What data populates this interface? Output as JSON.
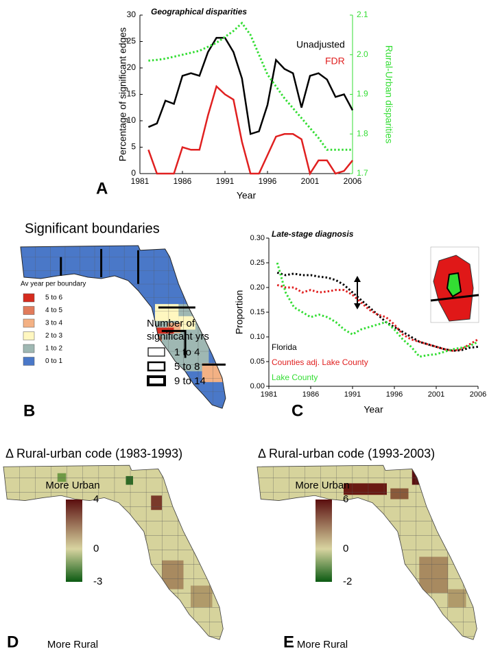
{
  "chart_data": [
    {
      "type": "line",
      "panel_label": "A",
      "title": "Geographical disparities",
      "xlabel": "Year",
      "ylabel": "Percentage of significant edges",
      "y2label": "Rural-Urban disparities",
      "x": [
        1982,
        1983,
        1984,
        1985,
        1986,
        1987,
        1988,
        1989,
        1990,
        1991,
        1992,
        1993,
        1994,
        1995,
        1996,
        1997,
        1998,
        1999,
        2000,
        2001,
        2002,
        2003,
        2004,
        2005,
        2006
      ],
      "xlim": [
        1981,
        2006
      ],
      "xticks": [
        1981,
        1986,
        1991,
        1996,
        2001,
        2006
      ],
      "ylim": [
        0,
        30
      ],
      "yticks": [
        0,
        5,
        10,
        15,
        20,
        25,
        30
      ],
      "y2lim": [
        1.7,
        2.1
      ],
      "y2ticks": [
        1.7,
        1.8,
        1.9,
        {
          "value": 2,
          "label": "2.0"
        },
        2.1
      ],
      "series": [
        {
          "name": "Unadjusted",
          "color": "#000000",
          "line_style": "solid",
          "values": [
            8.8,
            9.5,
            13.8,
            13.2,
            18.5,
            19,
            18.5,
            23,
            25.7,
            25.7,
            23,
            18,
            7.5,
            8,
            13,
            21.5,
            19.8,
            19,
            12.5,
            18.5,
            19,
            17.8,
            14.5,
            15,
            12
          ]
        },
        {
          "name": "FDR",
          "color": "#e02020",
          "line_style": "solid",
          "values": [
            4.5,
            0,
            0,
            0,
            5,
            4.5,
            4.5,
            11,
            16.5,
            15,
            14,
            6,
            0,
            0,
            3.5,
            7,
            7.5,
            7.5,
            6.5,
            0,
            2.5,
            2.5,
            0,
            0.5,
            2.5
          ]
        },
        {
          "color": "#33dd33",
          "line_style": "dotted",
          "axis": "y2",
          "values": [
            1.985,
            1.987,
            1.99,
            1.995,
            2.0,
            2.005,
            2.01,
            2.02,
            2.03,
            2.045,
            2.06,
            2.08,
            2.05,
            2.0,
            1.95,
            1.92,
            1.89,
            1.865,
            1.84,
            1.815,
            1.79,
            1.76,
            1.76,
            1.76,
            1.76
          ]
        }
      ]
    },
    {
      "type": "line",
      "panel_label": "C",
      "title": "Late-stage diagnosis",
      "xlabel": "Year",
      "ylabel": "Proportion",
      "x": [
        1982,
        1983,
        1984,
        1985,
        1986,
        1987,
        1988,
        1989,
        1990,
        1991,
        1992,
        1993,
        1994,
        1995,
        1996,
        1997,
        1998,
        1999,
        2000,
        2001,
        2002,
        2003,
        2004,
        2005,
        2006
      ],
      "xlim": [
        1981,
        2006
      ],
      "xticks": [
        1981,
        1986,
        1991,
        1996,
        2001,
        2006
      ],
      "ylim": [
        0,
        0.3
      ],
      "yticks": [
        {
          "value": 0,
          "label": "0.00"
        },
        {
          "value": 0.05,
          "label": "0.05"
        },
        {
          "value": 0.1,
          "label": "0.10"
        },
        {
          "value": 0.15,
          "label": "0.15"
        },
        {
          "value": 0.2,
          "label": "0.20"
        },
        {
          "value": 0.25,
          "label": "0.25"
        },
        {
          "value": 0.3,
          "label": "0.30"
        }
      ],
      "series": [
        {
          "name": "Florida",
          "color": "#000000",
          "line_style": "dotted",
          "values": [
            0.23,
            0.225,
            0.228,
            0.225,
            0.225,
            0.222,
            0.22,
            0.215,
            0.205,
            0.19,
            0.175,
            0.16,
            0.145,
            0.13,
            0.12,
            0.11,
            0.1,
            0.09,
            0.085,
            0.08,
            0.075,
            0.072,
            0.073,
            0.078,
            0.08
          ]
        },
        {
          "name": "Counties adj. Lake County",
          "color": "#e02020",
          "line_style": "dotted",
          "values": [
            0.205,
            0.2,
            0.2,
            0.19,
            0.195,
            0.19,
            0.192,
            0.195,
            0.195,
            0.185,
            0.17,
            0.155,
            0.145,
            0.14,
            0.125,
            0.105,
            0.095,
            0.09,
            0.085,
            0.08,
            0.075,
            0.072,
            0.075,
            0.085,
            0.095
          ]
        },
        {
          "name": "Lake County",
          "color": "#33dd33",
          "line_style": "dotted",
          "values": [
            0.25,
            0.19,
            0.16,
            0.15,
            0.14,
            0.145,
            0.14,
            0.13,
            0.115,
            0.105,
            0.115,
            0.12,
            0.125,
            0.13,
            0.115,
            0.095,
            0.08,
            0.06,
            0.063,
            0.065,
            0.07,
            0.075,
            0.078,
            0.082,
            0.09
          ]
        }
      ]
    }
  ],
  "maps": [
    {
      "panel_label": "B",
      "title": "Significant boundaries",
      "legend_title": "Av year per boundary",
      "legend": [
        {
          "label": "5 to 6",
          "color": "#d62b1e"
        },
        {
          "label": "4 to 5",
          "color": "#e17b5b"
        },
        {
          "label": "3 to 4",
          "color": "#f3b184"
        },
        {
          "label": "2 to 3",
          "color": "#fff7c0"
        },
        {
          "label": "1 to 2",
          "color": "#9fb8b3"
        },
        {
          "label": "0 to 1",
          "color": "#4a78c8"
        }
      ],
      "width_title": "Number of significant yrs",
      "width_legend": [
        "1 to 4",
        "5 to 8",
        "9 to 14"
      ]
    },
    {
      "panel_label": "D",
      "title": "Δ Rural-urban code (1983-1993)",
      "top_label": "More Urban",
      "bottom_label": "More Rural",
      "colorbar_ticks": [
        4,
        0,
        -3
      ]
    },
    {
      "panel_label": "E",
      "title": "Δ Rural-urban code (1993-2003)",
      "top_label": "More Urban",
      "bottom_label": "More Rural",
      "colorbar_ticks": [
        6,
        0,
        -2
      ]
    }
  ]
}
